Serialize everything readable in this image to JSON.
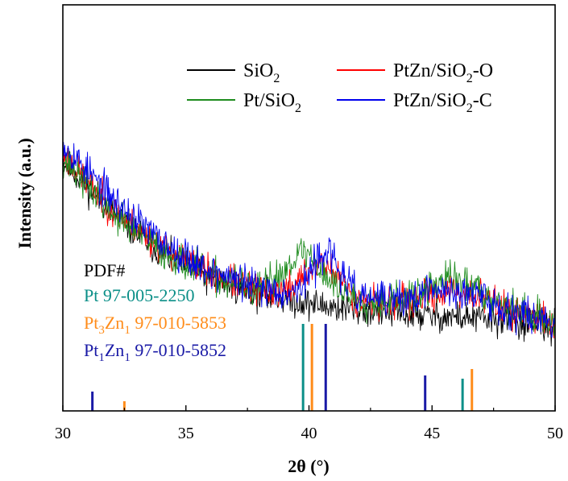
{
  "chart_data": {
    "type": "line",
    "xlabel": "2θ (°)",
    "ylabel": "Intensity (a.u.)",
    "xlim": [
      30,
      50
    ],
    "xticks": [
      "30",
      "35",
      "40",
      "45",
      "50"
    ],
    "y_ticks_shown": false,
    "legend_placement": "top-right",
    "series": [
      {
        "name": "SiO2",
        "label_base": "SiO",
        "label_sub": "2",
        "label_tail": "",
        "color": "#000000",
        "x": [
          30,
          32,
          34,
          36,
          38,
          39.5,
          40.5,
          42,
          44,
          46,
          48,
          50
        ],
        "y": [
          78,
          60,
          46,
          37,
          32,
          29.5,
          28,
          26.5,
          25,
          24,
          23,
          20
        ],
        "noise": 3.5,
        "seed": 11
      },
      {
        "name": "PtZn/SiO2-O",
        "label_base": "PtZn/SiO",
        "label_sub": "2",
        "label_tail": "-O",
        "color": "#ff0000",
        "x": [
          30,
          32,
          34,
          36,
          38,
          39,
          39.5,
          40,
          40.5,
          41,
          42,
          44,
          45,
          46,
          47,
          48,
          50
        ],
        "y": [
          80,
          61,
          48,
          39,
          33,
          33,
          36,
          40,
          43,
          39,
          30,
          29,
          32,
          33,
          31,
          27,
          22
        ],
        "noise": 3.5,
        "seed": 23
      },
      {
        "name": "Pt/SiO2",
        "label_base": "Pt/SiO",
        "label_sub": "2",
        "label_tail": "",
        "color": "#1e8c1e",
        "x": [
          30,
          32,
          34,
          36,
          38,
          39,
          39.5,
          40,
          40.5,
          41,
          42,
          44,
          45,
          45.5,
          46,
          47,
          48,
          50
        ],
        "y": [
          79,
          60,
          47,
          38,
          33,
          40,
          46,
          46,
          40,
          35,
          30,
          30,
          34,
          37,
          37,
          33,
          28,
          22
        ],
        "noise": 3.8,
        "seed": 37
      },
      {
        "name": "PtZn/SiO2-C",
        "label_base": "PtZn/SiO",
        "label_sub": "2",
        "label_tail": "-C",
        "color": "#0000ee",
        "x": [
          30,
          32,
          34,
          36,
          38,
          39.5,
          40,
          40.5,
          40.8,
          41.2,
          42,
          44,
          45,
          46,
          47,
          48,
          50
        ],
        "y": [
          84,
          65,
          50,
          40,
          34,
          33,
          38,
          46,
          47,
          40,
          31,
          30,
          33,
          33,
          31,
          27,
          22
        ],
        "noise": 3.8,
        "seed": 53
      }
    ],
    "reference_lines": [
      {
        "name": "Pt 97-005-2250",
        "color": "#0b8f88",
        "x": [
          39.76,
          46.24
        ],
        "h": [
          27,
          10
        ]
      },
      {
        "name": "Pt3Zn1 97-010-5853",
        "label_a": "Pt",
        "label_sub1": "3",
        "label_b": "Zn",
        "label_sub2": "1",
        "label_c": " 97-010-5853",
        "color": "#ff8c1a",
        "x": [
          32.5,
          40.12,
          46.62
        ],
        "h": [
          3,
          27,
          13
        ]
      },
      {
        "name": "Pt1Zn1 97-010-5852",
        "label_a": "Pt",
        "label_sub1": "1",
        "label_b": "Zn",
        "label_sub2": "1",
        "label_c": " 97-010-5852",
        "color": "#1a1aa6",
        "x": [
          31.2,
          40.68,
          44.72
        ],
        "h": [
          6,
          27,
          11
        ]
      }
    ],
    "pdf_header": "PDF#"
  }
}
